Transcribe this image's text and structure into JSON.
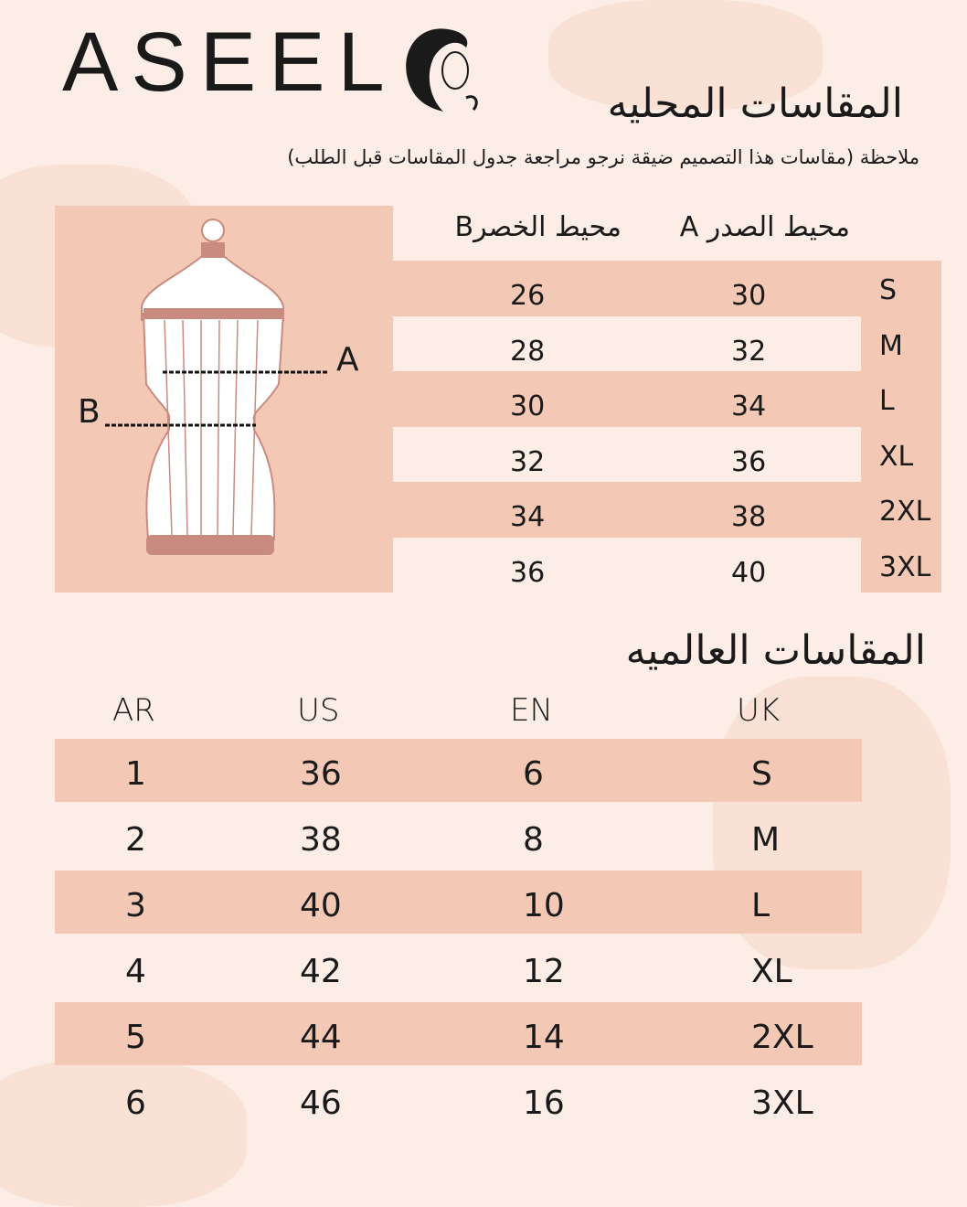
{
  "brand": {
    "logo": "ASEEL"
  },
  "local": {
    "title": "المقاسات المحليه",
    "note": "ملاحظة (مقاسات هذا التصميم ضيقة نرجو مراجعة جدول المقاسات قبل الطلب)",
    "headers": {
      "chest": "محيط الصدر A",
      "waist": "محيط الخصرB"
    },
    "diagram": {
      "label_a": "A",
      "label_b": "B"
    },
    "rows": [
      {
        "size": "S",
        "chest": "30",
        "waist": "26"
      },
      {
        "size": "M",
        "chest": "32",
        "waist": "28"
      },
      {
        "size": "L",
        "chest": "34",
        "waist": "30"
      },
      {
        "size": "XL",
        "chest": "36",
        "waist": "32"
      },
      {
        "size": "2XL",
        "chest": "38",
        "waist": "34"
      },
      {
        "size": "3XL",
        "chest": "40",
        "waist": "36"
      }
    ]
  },
  "international": {
    "title": "المقاسات العالميه",
    "headers": {
      "ar": "AR",
      "us": "US",
      "en": "EN",
      "uk": "UK"
    },
    "rows": [
      {
        "ar": "1",
        "us": "36",
        "en": "6",
        "uk": "S"
      },
      {
        "ar": "2",
        "us": "38",
        "en": "8",
        "uk": "M"
      },
      {
        "ar": "3",
        "us": "40",
        "en": "10",
        "uk": "L"
      },
      {
        "ar": "4",
        "us": "42",
        "en": "12",
        "uk": "XL"
      },
      {
        "ar": "5",
        "us": "44",
        "en": "14",
        "uk": "2XL"
      },
      {
        "ar": "6",
        "us": "46",
        "en": "16",
        "uk": "3XL"
      }
    ]
  },
  "colors": {
    "band": "#f3c9b6",
    "background": "#fcede6",
    "mannequin": "#c98a80"
  }
}
